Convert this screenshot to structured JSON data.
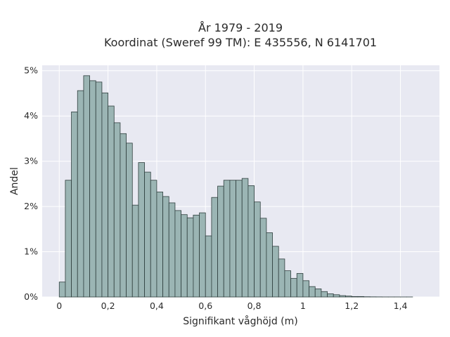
{
  "chart_data": {
    "type": "bar",
    "title_lines": [
      "År 1979 - 2019",
      "Koordinat (Sweref 99 TM): E 435556, N 6141701"
    ],
    "xlabel": "Signifikant våghöjd (m)",
    "ylabel": "Andel",
    "xlim": [
      -0.07,
      1.56
    ],
    "ylim": [
      0,
      5.12
    ],
    "bin_width": 0.025,
    "x_ticks": [
      0,
      0.2,
      0.4,
      0.6,
      0.8,
      1.0,
      1.2,
      1.4
    ],
    "x_tick_labels": [
      "0",
      "0,2",
      "0,4",
      "0,6",
      "0,8",
      "1",
      "1,2",
      "1,4"
    ],
    "y_ticks": [
      0,
      1,
      2,
      3,
      4,
      5
    ],
    "y_tick_labels": [
      "0%",
      "1%",
      "2%",
      "3%",
      "4%",
      "5%"
    ],
    "grid": true,
    "series": [
      {
        "bin_starts": [
          0,
          0.025,
          0.05,
          0.075,
          0.1,
          0.125,
          0.15,
          0.175,
          0.2,
          0.225,
          0.25,
          0.275,
          0.3,
          0.325,
          0.35,
          0.375,
          0.4,
          0.425,
          0.45,
          0.475,
          0.5,
          0.525,
          0.55,
          0.575,
          0.6,
          0.625,
          0.65,
          0.675,
          0.7,
          0.725,
          0.75,
          0.775,
          0.8,
          0.825,
          0.85,
          0.875,
          0.9,
          0.925,
          0.95,
          0.975,
          1.0,
          1.025,
          1.05,
          1.075,
          1.1,
          1.125,
          1.15,
          1.175,
          1.2,
          1.225,
          1.25,
          1.275,
          1.3,
          1.325,
          1.35,
          1.375,
          1.4,
          1.425
        ],
        "values": [
          0.33,
          2.58,
          4.09,
          4.56,
          4.89,
          4.78,
          4.75,
          4.51,
          4.22,
          3.85,
          3.61,
          3.4,
          2.03,
          2.97,
          2.76,
          2.58,
          2.32,
          2.22,
          2.08,
          1.91,
          1.82,
          1.75,
          1.81,
          1.86,
          1.35,
          2.2,
          2.45,
          2.58,
          2.58,
          2.58,
          2.62,
          2.46,
          2.1,
          1.74,
          1.42,
          1.12,
          0.84,
          0.58,
          0.41,
          0.52,
          0.36,
          0.23,
          0.18,
          0.12,
          0.07,
          0.05,
          0.03,
          0.02,
          0.01,
          0.01,
          0.005,
          0.003,
          0.002,
          0.001,
          0.001,
          0.001,
          0.0005,
          0.0005
        ]
      }
    ]
  },
  "colors": {
    "plot_background": "#e8e9f2",
    "bar_fill": "#9bb5b4",
    "bar_stroke": "#2f3f3e",
    "grid": "#ffffff"
  }
}
